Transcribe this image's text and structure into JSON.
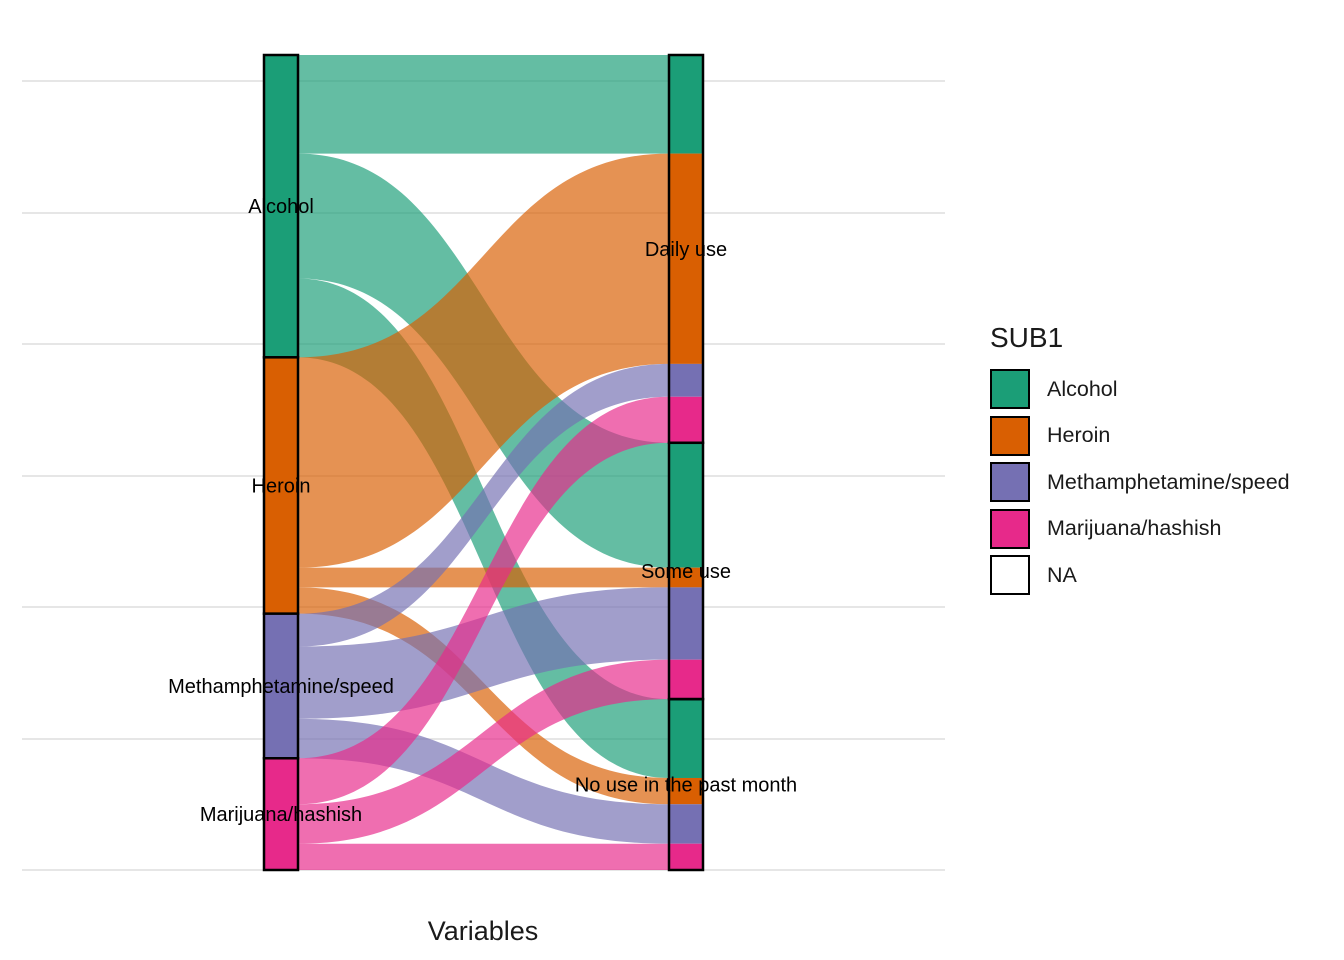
{
  "chart_data": {
    "type": "alluvial",
    "xlabel": "Variables",
    "legend": {
      "title": "SUB1",
      "position": "right"
    },
    "axes": [
      {
        "strata": [
          "Alcohol",
          "Heroin",
          "Methamphetamine/speed",
          "Marijuana/hashish"
        ]
      },
      {
        "strata": [
          "Daily use",
          "Some use",
          "No use in the past month"
        ]
      }
    ],
    "categories": [
      {
        "name": "Alcohol",
        "color": "#1B9E77"
      },
      {
        "name": "Heroin",
        "color": "#D95F02"
      },
      {
        "name": "Methamphetamine/speed",
        "color": "#7570B3"
      },
      {
        "name": "Marijuana/hashish",
        "color": "#E7298A"
      },
      {
        "name": "NA",
        "color": "#FFFFFF"
      }
    ],
    "flows": [
      {
        "from": "Alcohol",
        "to": "Daily use",
        "value": 7.5
      },
      {
        "from": "Alcohol",
        "to": "Some use",
        "value": 9.5
      },
      {
        "from": "Alcohol",
        "to": "No use in the past month",
        "value": 6
      },
      {
        "from": "Heroin",
        "to": "Daily use",
        "value": 16
      },
      {
        "from": "Heroin",
        "to": "Some use",
        "value": 1.5
      },
      {
        "from": "Heroin",
        "to": "No use in the past month",
        "value": 2
      },
      {
        "from": "Methamphetamine/speed",
        "to": "Daily use",
        "value": 2.5
      },
      {
        "from": "Methamphetamine/speed",
        "to": "Some use",
        "value": 5.5
      },
      {
        "from": "Methamphetamine/speed",
        "to": "No use in the past month",
        "value": 3
      },
      {
        "from": "Marijuana/hashish",
        "to": "Daily use",
        "value": 3.5
      },
      {
        "from": "Marijuana/hashish",
        "to": "Some use",
        "value": 3
      },
      {
        "from": "Marijuana/hashish",
        "to": "No use in the past month",
        "value": 2
      }
    ],
    "grid": true
  }
}
